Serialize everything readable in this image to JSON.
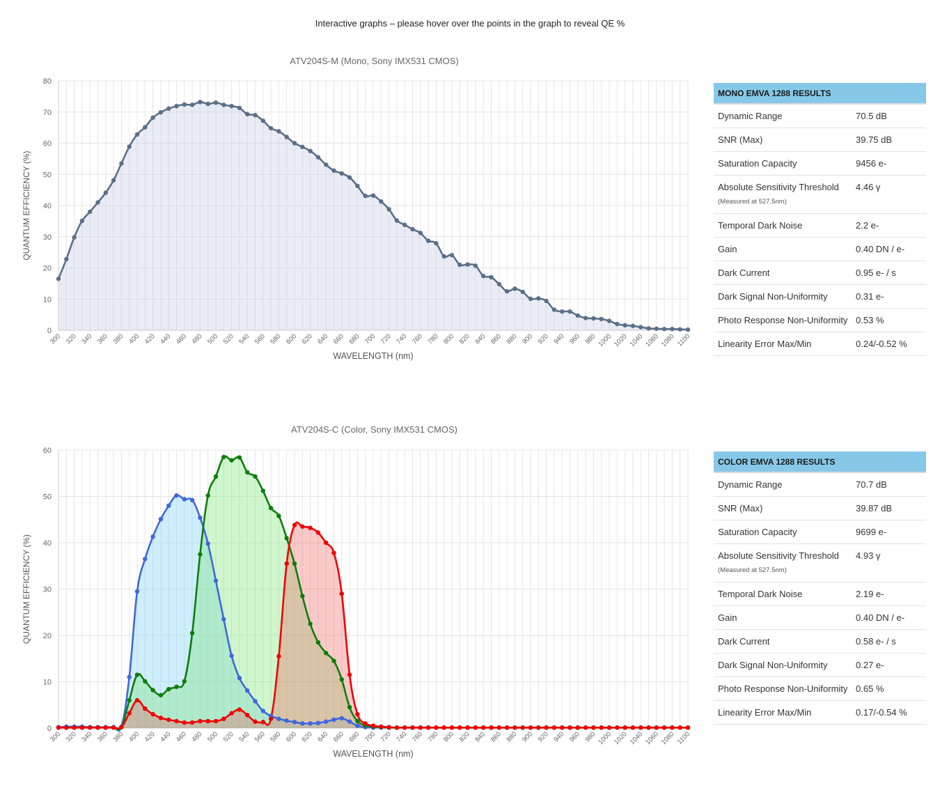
{
  "intro": "Interactive graphs – please hover over the points in the graph to reveal QE %",
  "colors": {
    "mono": "#5b6f86",
    "mono_fill": "rgba(191,197,224,0.33)",
    "red": "#f00000",
    "green": "#0c7d0c",
    "blue": "#4066dd",
    "header_bg": "#87c8e8"
  },
  "chart_data": [
    {
      "type": "line",
      "title": "ATV204S-M (Mono, Sony IMX531 CMOS)",
      "xlabel": "WAVELENGTH (nm)",
      "ylabel": "QUANTUM EFFICIENCY (%)",
      "xlim": [
        300,
        1100
      ],
      "ylim": [
        0,
        80
      ],
      "yticks": [
        0,
        10,
        20,
        30,
        40,
        50,
        60,
        70,
        80
      ],
      "xticks": [
        "300",
        "320",
        "340",
        "360",
        "380",
        "400",
        "420",
        "440",
        "460",
        "480",
        "500",
        "520",
        "540",
        "560",
        "580",
        "600",
        "620",
        "640",
        "660",
        "680",
        "700",
        "720",
        "740",
        "760",
        "780",
        "800",
        "820",
        "840",
        "860",
        "880",
        "900",
        "920",
        "940",
        "960",
        "980",
        "1000",
        "1020",
        "1040",
        "1060",
        "1080",
        "1100"
      ],
      "grid": true,
      "fill": true,
      "series": [
        {
          "color": "mono",
          "x": [
            300,
            310,
            320,
            330,
            340,
            350,
            360,
            370,
            380,
            390,
            400,
            410,
            420,
            430,
            440,
            450,
            460,
            470,
            480,
            490,
            500,
            510,
            520,
            530,
            540,
            550,
            560,
            570,
            580,
            590,
            600,
            610,
            620,
            630,
            640,
            650,
            660,
            670,
            680,
            690,
            700,
            710,
            720,
            730,
            740,
            750,
            760,
            770,
            780,
            790,
            800,
            810,
            820,
            830,
            840,
            850,
            860,
            870,
            880,
            890,
            900,
            910,
            920,
            930,
            940,
            950,
            960,
            970,
            980,
            990,
            1000,
            1010,
            1020,
            1030,
            1040,
            1050,
            1060,
            1070,
            1080,
            1090,
            1100
          ],
          "y": [
            16.5,
            22.8,
            29.8,
            35.1,
            38,
            41,
            44.1,
            48.1,
            53.5,
            58.9,
            62.8,
            65.1,
            68.2,
            69.9,
            71.1,
            71.9,
            72.4,
            72.3,
            73.2,
            72.6,
            73,
            72.3,
            71.9,
            71.3,
            69.3,
            69,
            67.2,
            64.8,
            63.8,
            62,
            60,
            58.8,
            57.5,
            55.5,
            53.1,
            51.2,
            50.3,
            49,
            46.3,
            43.1,
            43.2,
            41.3,
            38.8,
            35.2,
            33.8,
            32.4,
            31.2,
            28.7,
            27.9,
            23.7,
            24.1,
            21,
            21.1,
            20.7,
            17.4,
            17,
            14.8,
            12.5,
            13.3,
            12.3,
            10.1,
            10.2,
            9.4,
            6.6,
            6,
            6,
            4.7,
            3.9,
            3.8,
            3.6,
            3,
            2,
            1.6,
            1.4,
            1,
            0.6,
            0.5,
            0.4,
            0.4,
            0.3,
            0.2
          ]
        }
      ]
    },
    {
      "type": "area",
      "title": "ATV204S-C (Color, Sony IMX531 CMOS)",
      "xlabel": "WAVELENGTH (nm)",
      "ylabel": "QUANTUM EFFICIENCY (%)",
      "xlim": [
        300,
        1100
      ],
      "ylim": [
        0,
        60
      ],
      "yticks": [
        0,
        10,
        20,
        30,
        40,
        50,
        60
      ],
      "xticks": [
        "300",
        "320",
        "340",
        "360",
        "380",
        "400",
        "420",
        "440",
        "460",
        "480",
        "500",
        "520",
        "540",
        "560",
        "580",
        "600",
        "620",
        "640",
        "660",
        "680",
        "700",
        "720",
        "740",
        "760",
        "780",
        "800",
        "820",
        "840",
        "860",
        "880",
        "900",
        "920",
        "940",
        "960",
        "980",
        "1000",
        "1020",
        "1040",
        "1060",
        "1080",
        "1100"
      ],
      "grid": true,
      "fill": true,
      "series": [
        {
          "color": "blue",
          "fill": "rgba(120,205,250,0.36)",
          "x": [
            300,
            310,
            320,
            330,
            340,
            350,
            360,
            370,
            380,
            390,
            400,
            410,
            420,
            430,
            440,
            450,
            460,
            470,
            480,
            490,
            500,
            510,
            520,
            530,
            540,
            550,
            560,
            570,
            580,
            590,
            600,
            610,
            620,
            630,
            640,
            650,
            660,
            670,
            680,
            690,
            700,
            710,
            720,
            730,
            740,
            750,
            760,
            770,
            780,
            790,
            800,
            810,
            820,
            830,
            840,
            850,
            860,
            870,
            880,
            890,
            900,
            910,
            920,
            930,
            940,
            950,
            960,
            970,
            980,
            990,
            1000,
            1010,
            1020,
            1030,
            1040,
            1050,
            1060,
            1070,
            1080,
            1090,
            1100
          ],
          "y": [
            0.2,
            0.3,
            0.3,
            0.3,
            0.2,
            0.2,
            0.2,
            0.2,
            0.3,
            11,
            29.5,
            36.5,
            41.3,
            45.1,
            48,
            50.2,
            49.4,
            49.2,
            45.4,
            39.8,
            31.8,
            23.5,
            15.6,
            10.8,
            8.1,
            5.8,
            3.7,
            2.6,
            2,
            1.6,
            1.3,
            1,
            1,
            1.1,
            1.4,
            1.8,
            2.1,
            1.4,
            0.5,
            0.2,
            0.1,
            0.1,
            0.1,
            0.1,
            0.1,
            0.1,
            0.1,
            0.1,
            0.1,
            0.1,
            0.1,
            0.1,
            0.1,
            0.1,
            0.1,
            0.1,
            0.1,
            0.1,
            0.1,
            0.1,
            0.1,
            0.1,
            0.1,
            0.1,
            0.1,
            0.1,
            0.1,
            0.1,
            0.1,
            0.1,
            0.1,
            0.1,
            0.1,
            0.1,
            0.1,
            0.1,
            0.1,
            0.1,
            0.1,
            0.1,
            0.1
          ]
        },
        {
          "color": "green",
          "fill": "rgba(125,230,120,0.36)",
          "x": [
            300,
            310,
            320,
            330,
            340,
            350,
            360,
            370,
            380,
            390,
            400,
            410,
            420,
            430,
            440,
            450,
            460,
            470,
            480,
            490,
            500,
            510,
            520,
            530,
            540,
            550,
            560,
            570,
            580,
            590,
            600,
            610,
            620,
            630,
            640,
            650,
            660,
            670,
            680,
            690,
            700,
            710,
            720,
            730,
            740,
            750,
            760,
            770,
            780,
            790,
            800,
            810,
            820,
            830,
            840,
            850,
            860,
            870,
            880,
            890,
            900,
            910,
            920,
            930,
            940,
            950,
            960,
            970,
            980,
            990,
            1000,
            1010,
            1020,
            1030,
            1040,
            1050,
            1060,
            1070,
            1080,
            1090,
            1100
          ],
          "y": [
            0.1,
            0.1,
            0.1,
            0.1,
            0.1,
            0.1,
            0.1,
            0.1,
            0.2,
            6,
            11.5,
            10.1,
            8.2,
            7.1,
            8.4,
            8.9,
            10.1,
            20.5,
            37.5,
            50.2,
            54.3,
            58.5,
            57.8,
            58.4,
            55.2,
            54.3,
            51.2,
            47.5,
            45.8,
            41,
            35.5,
            28.5,
            22.5,
            18.5,
            16.2,
            14.5,
            10.5,
            4.5,
            1.5,
            0.6,
            0.3,
            0.2,
            0.1,
            0.1,
            0.1,
            0.1,
            0.1,
            0.1,
            0.1,
            0.1,
            0.1,
            0.1,
            0.1,
            0.1,
            0.1,
            0.1,
            0.1,
            0.1,
            0.1,
            0.1,
            0.1,
            0.1,
            0.1,
            0.1,
            0.1,
            0.1,
            0.1,
            0.1,
            0.1,
            0.1,
            0.1,
            0.1,
            0.1,
            0.1,
            0.1,
            0.1,
            0.1,
            0.1,
            0.1,
            0.1,
            0.1
          ]
        },
        {
          "color": "red",
          "fill": "rgba(240,80,80,0.3)",
          "x": [
            300,
            310,
            320,
            330,
            340,
            350,
            360,
            370,
            380,
            390,
            400,
            410,
            420,
            430,
            440,
            450,
            460,
            470,
            480,
            490,
            500,
            510,
            520,
            530,
            540,
            550,
            560,
            570,
            580,
            590,
            600,
            610,
            620,
            630,
            640,
            650,
            660,
            670,
            680,
            690,
            700,
            710,
            720,
            730,
            740,
            750,
            760,
            770,
            780,
            790,
            800,
            810,
            820,
            830,
            840,
            850,
            860,
            870,
            880,
            890,
            900,
            910,
            920,
            930,
            940,
            950,
            960,
            970,
            980,
            990,
            1000,
            1010,
            1020,
            1030,
            1040,
            1050,
            1060,
            1070,
            1080,
            1090,
            1100
          ],
          "y": [
            0.1,
            0.1,
            0.1,
            0.1,
            0.1,
            0.1,
            0.1,
            0.1,
            0.2,
            3.2,
            6,
            4.2,
            3,
            2.2,
            1.8,
            1.5,
            1.2,
            1.2,
            1.5,
            1.5,
            1.5,
            2,
            3.2,
            4,
            2.8,
            1.4,
            1.3,
            2,
            15.5,
            35.5,
            43.8,
            43.5,
            43.2,
            42.2,
            40,
            37.8,
            29,
            11.5,
            3,
            1,
            0.5,
            0.3,
            0.2,
            0.1,
            0.1,
            0.1,
            0.1,
            0.1,
            0.1,
            0.1,
            0.1,
            0.1,
            0.1,
            0.1,
            0.1,
            0.1,
            0.1,
            0.1,
            0.1,
            0.1,
            0.1,
            0.1,
            0.1,
            0.1,
            0.1,
            0.1,
            0.1,
            0.1,
            0.1,
            0.1,
            0.1,
            0.1,
            0.1,
            0.1,
            0.1,
            0.1,
            0.1,
            0.1,
            0.1,
            0.1,
            0.1
          ]
        }
      ]
    }
  ],
  "mono_results": {
    "header": "MONO EMVA 1288 RESULTS",
    "rows": [
      {
        "label": "Dynamic Range",
        "value": "70.5 dB"
      },
      {
        "label": "SNR (Max)",
        "value": "39.75 dB"
      },
      {
        "label": "Saturation Capacity",
        "value": "9456 e-"
      },
      {
        "label": "Absolute Sensitivity Threshold",
        "note": "(Measured at 527.5nm)",
        "value": "4.46 γ"
      },
      {
        "label": "Temporal Dark Noise",
        "value": "2.2 e-"
      },
      {
        "label": "Gain",
        "value": "0.40 DN / e-"
      },
      {
        "label": "Dark Current",
        "value": "0.95 e- / s"
      },
      {
        "label": "Dark Signal Non-Uniformity",
        "value": "0.31 e-"
      },
      {
        "label": "Photo Response Non-Uniformity",
        "value": "0.53 %"
      },
      {
        "label": "Linearity Error Max/Min",
        "value": "0.24/-0.52 %"
      }
    ]
  },
  "color_results": {
    "header": "COLOR EMVA 1288 RESULTS",
    "rows": [
      {
        "label": "Dynamic Range",
        "value": "70.7 dB"
      },
      {
        "label": "SNR (Max)",
        "value": "39.87 dB"
      },
      {
        "label": "Saturation Capacity",
        "value": "9699 e-"
      },
      {
        "label": "Absolute Sensitivity Threshold",
        "note": "(Measured at 527.5nm)",
        "value": "4.93 γ"
      },
      {
        "label": "Temporal Dark Noise",
        "value": "2.19 e-"
      },
      {
        "label": "Gain",
        "value": "0.40 DN / e-"
      },
      {
        "label": "Dark Current",
        "value": "0.58 e- / s"
      },
      {
        "label": "Dark Signal Non-Uniformity",
        "value": "0.27 e-"
      },
      {
        "label": "Photo Response Non-Uniformity",
        "value": "0.65 %"
      },
      {
        "label": "Linearity Error Max/Min",
        "value": "0.17/-0.54 %"
      }
    ]
  }
}
